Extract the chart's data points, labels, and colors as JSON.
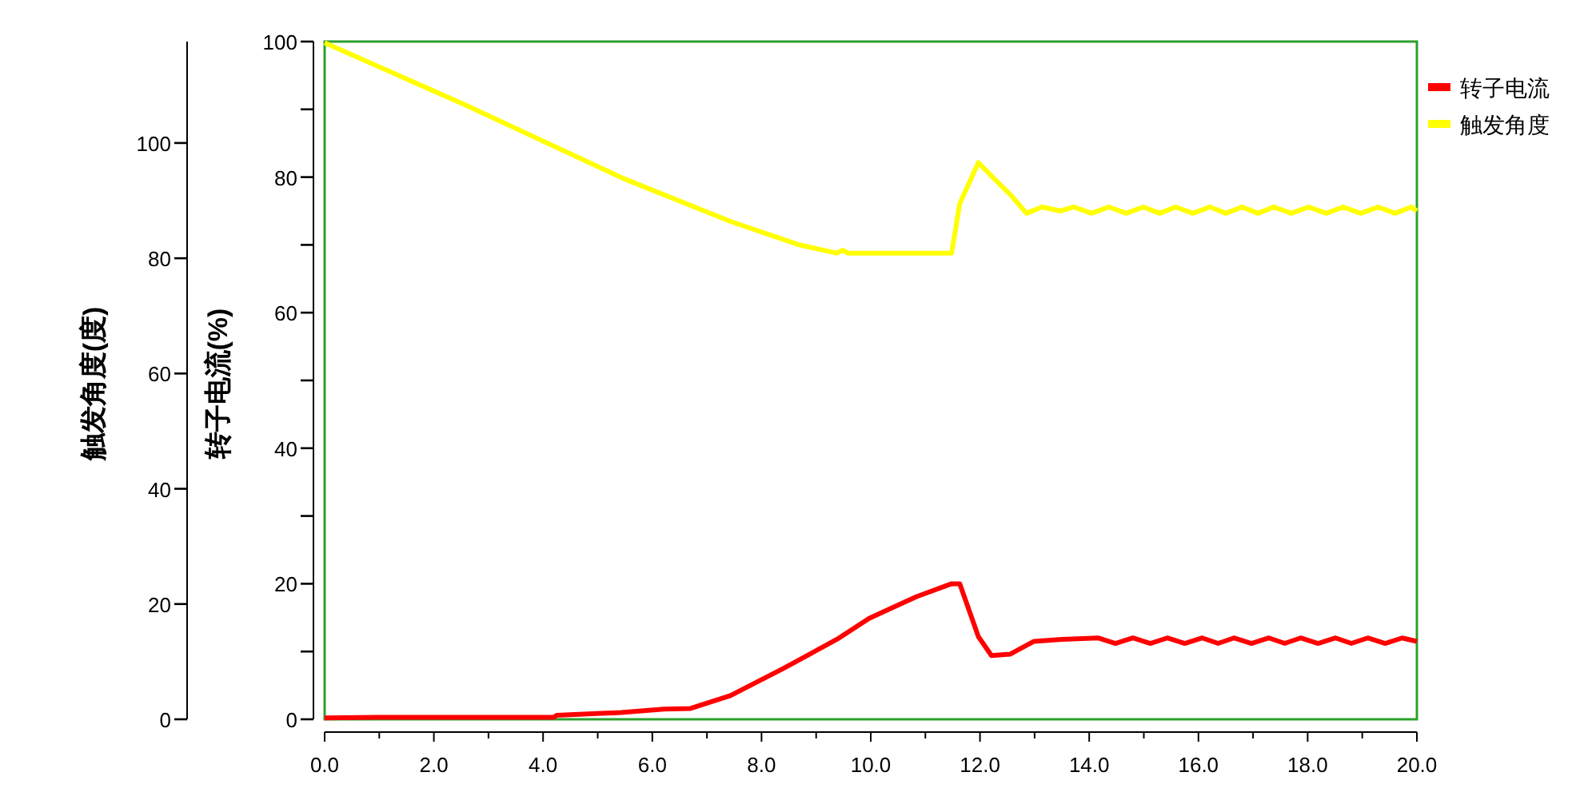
{
  "chart_data": {
    "type": "line",
    "ylabel": "转子电流(%)",
    "y2label": "触发角度(度)",
    "xlim": [
      0,
      20
    ],
    "xticks": [
      {
        "value": 0,
        "label": "0.0"
      },
      {
        "value": 1,
        "label": null
      },
      {
        "value": 2,
        "label": "2.0"
      },
      {
        "value": 3,
        "label": null
      },
      {
        "value": 4,
        "label": "4.0"
      },
      {
        "value": 5,
        "label": null
      },
      {
        "value": 6,
        "label": "6.0"
      },
      {
        "value": 7,
        "label": null
      },
      {
        "value": 8,
        "label": "8.0"
      },
      {
        "value": 9,
        "label": null
      },
      {
        "value": 10,
        "label": "10.0"
      },
      {
        "value": 11,
        "label": null
      },
      {
        "value": 12,
        "label": "12.0"
      },
      {
        "value": 13,
        "label": null
      },
      {
        "value": 14,
        "label": "14.0"
      },
      {
        "value": 15,
        "label": null
      },
      {
        "value": 16,
        "label": "16.0"
      },
      {
        "value": 17,
        "label": null
      },
      {
        "value": 18,
        "label": "18.0"
      },
      {
        "value": 19,
        "label": null
      },
      {
        "value": 20,
        "label": "20.0"
      }
    ],
    "ylim": [
      0,
      100
    ],
    "yticks": [
      0,
      {
        "value": 10,
        "label": null
      },
      20,
      {
        "value": 30,
        "label": null
      },
      40,
      {
        "value": 50,
        "label": null
      },
      60,
      {
        "value": 70,
        "label": null
      },
      80,
      {
        "value": 90,
        "label": null
      },
      100
    ],
    "y2lim": [
      0,
      117.6
    ],
    "y2ticks": [
      0,
      20,
      40,
      60,
      80,
      100
    ],
    "legend": "right",
    "grid": false,
    "series": [
      {
        "name": "转子电流",
        "color": "#ff0000",
        "x": [
          0,
          1,
          2,
          3,
          4.2,
          4.25,
          5.43,
          6.21,
          6.7,
          7.43,
          8.4,
          9.38,
          9.97,
          10.84,
          11.48,
          11.58,
          11.63,
          11.97,
          12.21,
          12.55,
          12.99,
          13.5,
          14.16,
          14.48,
          14.8,
          15.12,
          15.43,
          15.75,
          16.07,
          16.36,
          16.65,
          16.97,
          17.29,
          17.58,
          17.87,
          18.19,
          18.51,
          18.8,
          19.1,
          19.42,
          19.73,
          20
        ],
        "values": [
          0.2,
          0.3,
          0.3,
          0.3,
          0.3,
          0.6,
          1.0,
          1.5,
          1.6,
          3.5,
          7.5,
          11.8,
          14.9,
          18.1,
          20.0,
          20.0,
          20.0,
          12.2,
          9.4,
          9.6,
          11.5,
          11.8,
          12.0,
          11.2,
          12.0,
          11.2,
          12.0,
          11.2,
          12.0,
          11.2,
          12.0,
          11.2,
          12.0,
          11.2,
          12.0,
          11.2,
          12.0,
          11.2,
          12.0,
          11.2,
          12.0,
          11.5
        ]
      },
      {
        "name": "触发角度",
        "color": "#ffff00",
        "axis": "y2",
        "x": [
          0,
          2.55,
          5.48,
          7.43,
          8.7,
          9.37,
          9.49,
          9.58,
          11.48,
          11.63,
          11.97,
          12.26,
          12.59,
          12.85,
          13.14,
          13.47,
          13.72,
          14.04,
          14.36,
          14.68,
          14.99,
          15.29,
          15.58,
          15.9,
          16.21,
          16.5,
          16.8,
          17.09,
          17.38,
          17.7,
          18.02,
          18.34,
          18.65,
          18.97,
          19.29,
          19.6,
          19.9,
          20
        ],
        "values": [
          117.4,
          106.7,
          93.8,
          86.4,
          82.3,
          80.9,
          81.4,
          80.9,
          80.9,
          89.5,
          96.6,
          93.8,
          90.7,
          87.8,
          88.9,
          88.2,
          88.9,
          87.8,
          88.9,
          87.8,
          88.9,
          87.8,
          88.9,
          87.8,
          88.9,
          87.8,
          88.9,
          87.8,
          88.9,
          87.8,
          88.9,
          87.8,
          88.9,
          87.8,
          88.9,
          87.8,
          88.9,
          88.2
        ]
      }
    ]
  }
}
